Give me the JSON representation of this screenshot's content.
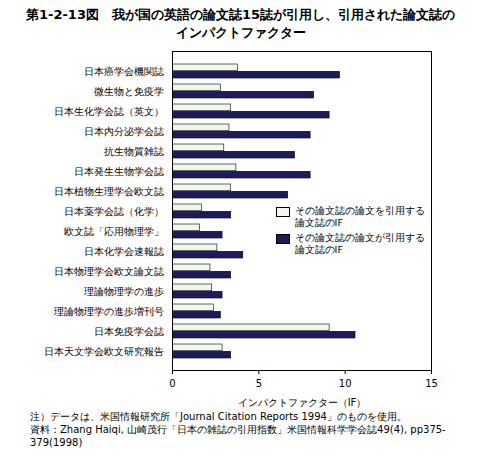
{
  "chart_data": {
    "type": "bar",
    "orientation": "horizontal",
    "title": "第1-2-13図　我が国の英語の論文誌15誌が引用し、引用された論文誌のインパクトファクター",
    "categories": [
      "日本癌学会機関誌",
      "微生物と免疫学",
      "日本生化学会誌（英文）",
      "日本内分泌学会誌",
      "抗生物質雑誌",
      "日本発生生物学会誌",
      "日本植物生理学会欧文誌",
      "日本薬学会誌（化学）",
      "欧文誌「応用物理学」",
      "日本化学会速報誌",
      "日本物理学会欧文論文誌",
      "理論物理学の進歩",
      "理論物理学の進歩増刊号",
      "日本免疫学会誌",
      "日本天文学会欧文研究報告"
    ],
    "series": [
      {
        "name": "その論文誌の論文を引用する論文誌のIF",
        "color": "#f0f8ec",
        "values": [
          3.8,
          2.8,
          3.4,
          3.3,
          3.0,
          3.7,
          3.4,
          1.7,
          1.6,
          2.6,
          2.2,
          2.3,
          2.4,
          9.1,
          2.9
        ]
      },
      {
        "name": "その論文誌の論文が引用する論文誌のIF",
        "color": "#1c1c5c",
        "values": [
          9.7,
          8.2,
          9.1,
          8.0,
          7.1,
          8.0,
          6.7,
          3.4,
          2.9,
          4.1,
          3.4,
          2.9,
          2.8,
          10.6,
          3.4
        ]
      }
    ],
    "xlabel": "インパクトファクター（IF）",
    "xlim": [
      0,
      15
    ],
    "xticks": [
      0,
      5,
      10,
      15
    ],
    "grid": false,
    "legend": "right",
    "notes": [
      "注）データは、米国情報研究所「Journal Citation Reports 1994」のものを使用。",
      "資料：Zhang Haiqi, 山崎茂行「日本の雑誌の引用指数」米国情報科学学会誌49(4), pp375-379(1998)"
    ]
  }
}
